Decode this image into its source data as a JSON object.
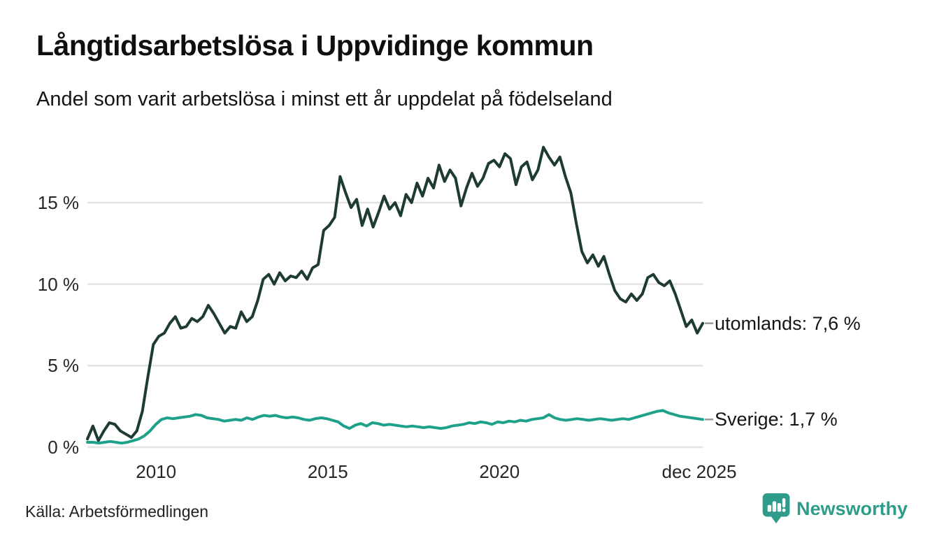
{
  "header": {
    "title": "Långtidsarbetslösa i Uppvidinge kommun",
    "subtitle": "Andel som varit arbetslösa i minst ett år uppdelat på födelseland"
  },
  "footer": {
    "source": "Källa: Arbetsförmedlingen",
    "brand_name": "Newsworthy"
  },
  "colors": {
    "utomlands_line": "#1d3a33",
    "sverige_line": "#1ea18b",
    "grid": "#e3e3e3",
    "tick_dash": "#9a9a9a",
    "brand": "#2f9c8b"
  },
  "chart_data": {
    "type": "line",
    "title": "Långtidsarbetslösa i Uppvidinge kommun",
    "subtitle": "Andel som varit arbetslösa i minst ett år uppdelat på födelseland",
    "unit": "%",
    "grid": "horizontal",
    "legend_position": "line-end-labels",
    "x_start": 2008,
    "x_end": 2025.92,
    "ylim": [
      0,
      19.5
    ],
    "y_ticks": [
      "0 %",
      "5 %",
      "10 %",
      "15 %"
    ],
    "y_tick_values": [
      0,
      5,
      10,
      15
    ],
    "x_ticks": [
      {
        "label": "2010",
        "year": 2010
      },
      {
        "label": "2015",
        "year": 2015
      },
      {
        "label": "2020",
        "year": 2020
      },
      {
        "label": "dec 2025",
        "year": 2025.92
      }
    ],
    "series": [
      {
        "name": "utomlands",
        "label": "utomlands: 7,6 %",
        "last_value": 7.6,
        "color": "#1d3a33",
        "values": [
          0.5,
          1.3,
          0.4,
          1.0,
          1.5,
          1.4,
          1.0,
          0.8,
          0.6,
          1.0,
          2.2,
          4.3,
          6.3,
          6.8,
          7.0,
          7.6,
          8.0,
          7.3,
          7.4,
          7.9,
          7.7,
          8.0,
          8.7,
          8.2,
          7.6,
          7.0,
          7.4,
          7.3,
          8.3,
          7.7,
          8.0,
          9.0,
          10.3,
          10.6,
          10.0,
          10.7,
          10.2,
          10.5,
          10.4,
          10.8,
          10.3,
          11.0,
          11.2,
          13.3,
          13.6,
          14.1,
          16.6,
          15.6,
          14.7,
          15.2,
          13.6,
          14.6,
          13.5,
          14.4,
          15.4,
          14.6,
          15.0,
          14.2,
          15.5,
          15.0,
          16.2,
          15.4,
          16.5,
          15.9,
          17.3,
          16.3,
          17.0,
          16.5,
          14.8,
          15.9,
          16.8,
          16.0,
          16.5,
          17.4,
          17.6,
          17.2,
          18.0,
          17.7,
          16.1,
          17.2,
          17.5,
          16.4,
          17.0,
          18.4,
          17.8,
          17.3,
          17.8,
          16.6,
          15.6,
          13.7,
          12.0,
          11.3,
          11.8,
          11.1,
          11.7,
          10.6,
          9.6,
          9.1,
          8.9,
          9.4,
          9.0,
          9.4,
          10.4,
          10.6,
          10.1,
          9.9,
          10.2,
          9.4,
          8.4,
          7.4,
          7.8,
          7.0,
          7.6
        ]
      },
      {
        "name": "Sverige",
        "label": "Sverige: 1,7 %",
        "last_value": 1.7,
        "color": "#1ea18b",
        "values": [
          0.3,
          0.3,
          0.25,
          0.3,
          0.35,
          0.3,
          0.25,
          0.3,
          0.4,
          0.5,
          0.7,
          1.0,
          1.4,
          1.7,
          1.8,
          1.75,
          1.8,
          1.85,
          1.9,
          2.0,
          1.95,
          1.8,
          1.75,
          1.7,
          1.6,
          1.65,
          1.7,
          1.65,
          1.8,
          1.7,
          1.85,
          1.95,
          1.9,
          1.95,
          1.85,
          1.8,
          1.85,
          1.8,
          1.7,
          1.65,
          1.75,
          1.8,
          1.75,
          1.65,
          1.55,
          1.3,
          1.15,
          1.35,
          1.45,
          1.3,
          1.5,
          1.45,
          1.35,
          1.4,
          1.35,
          1.3,
          1.25,
          1.3,
          1.25,
          1.2,
          1.25,
          1.2,
          1.15,
          1.2,
          1.3,
          1.35,
          1.4,
          1.5,
          1.45,
          1.55,
          1.5,
          1.4,
          1.55,
          1.5,
          1.6,
          1.55,
          1.65,
          1.6,
          1.7,
          1.75,
          1.8,
          2.0,
          1.8,
          1.7,
          1.65,
          1.7,
          1.75,
          1.7,
          1.65,
          1.7,
          1.75,
          1.7,
          1.65,
          1.7,
          1.75,
          1.7,
          1.8,
          1.9,
          2.0,
          2.1,
          2.2,
          2.25,
          2.1,
          2.0,
          1.9,
          1.85,
          1.8,
          1.75,
          1.7
        ]
      }
    ]
  }
}
